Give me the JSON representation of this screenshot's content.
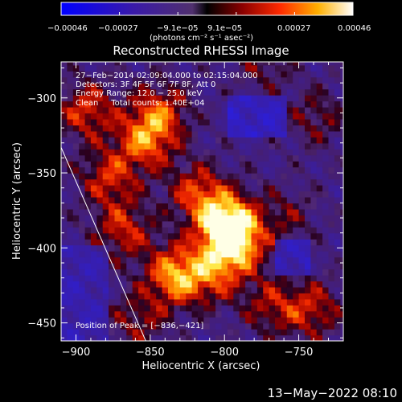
{
  "chart_data": {
    "type": "heatmap",
    "title": "Reconstructed RHESSI Image",
    "xlabel": "Heliocentric X (arcsec)",
    "ylabel": "Heliocentric Y (arcsec)",
    "xlim": [
      -910,
      -720
    ],
    "ylim": [
      -462,
      -276
    ],
    "x_ticks": [
      -900,
      -850,
      -800,
      -750
    ],
    "x_tick_labels": [
      "−900",
      "−850",
      "−800",
      "−750"
    ],
    "y_ticks": [
      -300,
      -350,
      -400,
      -450
    ],
    "y_tick_labels": [
      "−300",
      "−350",
      "−400",
      "−450"
    ],
    "colorbar": {
      "range": [
        -0.00046,
        0.00046
      ],
      "tick_labels": [
        "−0.00046",
        "−0.00027",
        "−9.1e−05",
        "9.1e−05",
        "0.00027",
        "0.00046"
      ],
      "unit_label": "(photons cm⁻² s⁻¹ asec⁻²)"
    },
    "annotations": [
      "27−Feb−2014 02:09:04.000 to 02:15:04.000",
      "Detectors: 3F 4F 5F 6F 7F 8F, Att 0",
      "Energy Range: 12.0 − 25.0 keV",
      "Clean     Total counts: 1.40E+04"
    ],
    "peak_label": "Position of Peak = [−836,−421]",
    "peak": [
      -836,
      -421
    ],
    "sources": [
      {
        "x": -800,
        "y": -385,
        "amp": 1.0
      },
      {
        "x": -795,
        "y": -400,
        "amp": 0.8
      },
      {
        "x": -835,
        "y": -420,
        "amp": 0.85
      },
      {
        "x": -855,
        "y": -330,
        "amp": 0.7
      },
      {
        "x": -845,
        "y": -310,
        "amp": 0.55
      },
      {
        "x": -895,
        "y": -310,
        "amp": 0.6
      },
      {
        "x": -880,
        "y": -355,
        "amp": 0.55
      },
      {
        "x": -870,
        "y": -390,
        "amp": 0.55
      },
      {
        "x": -820,
        "y": -365,
        "amp": 0.6
      },
      {
        "x": -810,
        "y": -420,
        "amp": 0.5
      },
      {
        "x": -770,
        "y": -440,
        "amp": 0.45
      },
      {
        "x": -742,
        "y": -443,
        "amp": 0.5
      },
      {
        "x": -860,
        "y": -450,
        "amp": 0.4
      },
      {
        "x": -740,
        "y": -315,
        "amp": 0.35
      },
      {
        "x": -760,
        "y": -380,
        "amp": 0.3
      },
      {
        "x": -775,
        "y": -280,
        "amp": 0.3
      }
    ],
    "limb_line": {
      "x": [
        -910,
        -853
      ],
      "y": [
        -333,
        -462
      ]
    }
  },
  "footer_timestamp": "13−May−2022 08:10"
}
